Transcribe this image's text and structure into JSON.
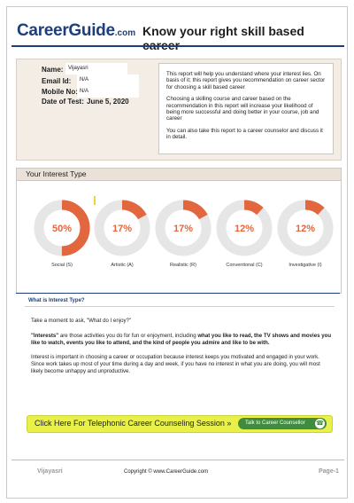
{
  "header": {
    "logo_brand": "CareerGuide",
    "logo_tld": ".com",
    "title": "Know your right skill based career"
  },
  "info": {
    "name_label": "Name:",
    "name_value": "Vijayasri",
    "email_label": "Email Id:",
    "email_value": "N/A",
    "mobile_label": "Mobile No:",
    "mobile_value": "N/A",
    "date_label": "Date of Test:",
    "date_value": "June 5, 2020",
    "para1": "This report will help you understand where your interest lies. On basis of it; this report gives you recommendation on career sector for choosing a skill based career",
    "para2": "Choosing a skilling course and career based on the recommendation in this report will increase your likelihood of being more successful and doing better in your course, job and career",
    "para3": "You can also take this report to a career counselor and discuss it in detail."
  },
  "interest": {
    "title": "Your Interest Type",
    "items": [
      {
        "label": "Social (S)",
        "value": 50,
        "text": "50%"
      },
      {
        "label": "Artistic (A)",
        "value": 17,
        "text": "17%"
      },
      {
        "label": "Realistic (R)",
        "value": 17,
        "text": "17%"
      },
      {
        "label": "Conventional (C)",
        "value": 12,
        "text": "12%"
      },
      {
        "label": "Investigative (I)",
        "value": 12,
        "text": "12%"
      }
    ],
    "colors": {
      "fill": "#e2673f",
      "track": "#e6e6e6",
      "text": "#e2673f"
    }
  },
  "what": {
    "heading": "What is Interest Type?",
    "p1": "Take a moment to ask, \"What do I enjoy?\"",
    "p2_a": "\"Interests\"",
    "p2_b": " are those activities you do for fun or enjoyment, including ",
    "p2_c": "what you like to read, the TV shows and movies you like to watch, events you like to attend, and the kind of people you admire and like to be with.",
    "p3": "Interest is important in choosing a career or occupation because interest keeps you motivated and engaged in your work. Since work takes up most of your time during a day and week, if you have no interest in what you are doing, you will most likely become unhappy and unproductive."
  },
  "cta": {
    "text": "Click Here For Telephonic Career Counseling Session »",
    "button": "Talk to Career Counsellor",
    "phone_icon": "phone-icon"
  },
  "footer": {
    "name": "Vijayasri",
    "copyright": "Copyright © www.CareerGuide.com",
    "page": "Page-1"
  }
}
